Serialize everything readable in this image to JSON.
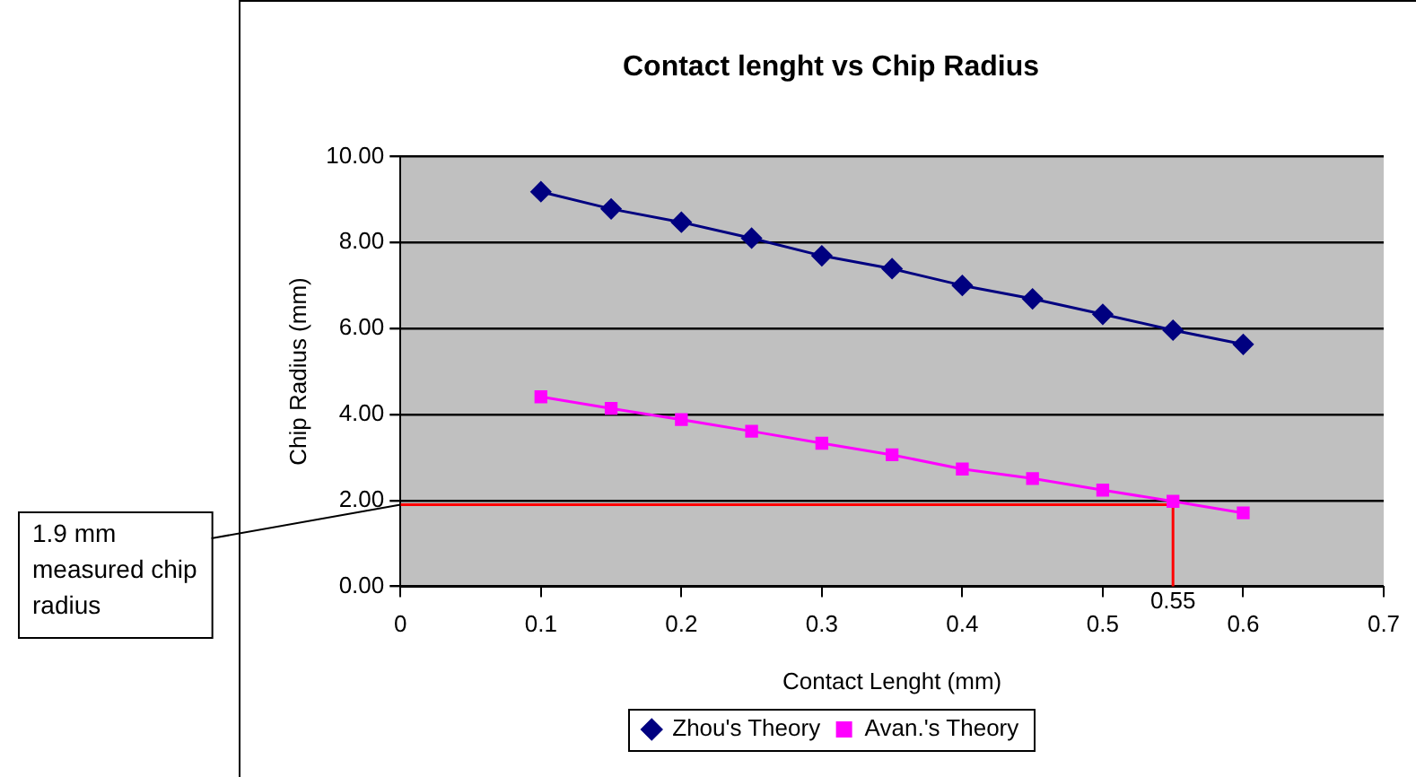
{
  "chart_data": {
    "type": "line",
    "title": "Contact lenght vs Chip Radius",
    "xlabel": "Contact Lenght (mm)",
    "ylabel": "Chip Radius (mm)",
    "series": [
      {
        "name": "Zhou's Theory",
        "color": "#000080",
        "marker": "diamond",
        "x": [
          0.1,
          0.15,
          0.2,
          0.25,
          0.3,
          0.35,
          0.4,
          0.45,
          0.5,
          0.55,
          0.6
        ],
        "values": [
          9.18,
          8.78,
          8.47,
          8.1,
          7.69,
          7.39,
          7.0,
          6.69,
          6.33,
          5.96,
          5.63
        ]
      },
      {
        "name": "Avan.'s Theory",
        "color": "#ff00ff",
        "marker": "square",
        "x": [
          0.1,
          0.15,
          0.2,
          0.25,
          0.3,
          0.35,
          0.4,
          0.45,
          0.5,
          0.55,
          0.6
        ],
        "values": [
          4.41,
          4.14,
          3.88,
          3.61,
          3.33,
          3.06,
          2.73,
          2.51,
          2.24,
          1.98,
          1.71
        ]
      },
      {
        "type": "line",
        "color": "#ff0000",
        "marker": "none",
        "x": [
          0,
          0.55,
          0.55
        ],
        "values": [
          1.9,
          1.9,
          0
        ]
      }
    ],
    "xlim": [
      0,
      0.7
    ],
    "xticks": [
      0,
      0.1,
      0.2,
      0.3,
      0.4,
      0.5,
      0.6,
      0.7
    ],
    "ylim": [
      0,
      10
    ],
    "yticks": [
      {
        "value": 0,
        "label": "0.00"
      },
      {
        "value": 2,
        "label": "2.00"
      },
      {
        "value": 4,
        "label": "4.00"
      },
      {
        "value": 6,
        "label": "6.00"
      },
      {
        "value": 8,
        "label": "8.00"
      },
      {
        "value": 10,
        "label": "10.00"
      }
    ],
    "grid": "y",
    "legend": "bottom",
    "annotations": [
      {
        "text": "0.55",
        "x": 0.55,
        "y": 0
      },
      {
        "text": "1.9 mm measured chip radius",
        "x": 0,
        "y": 1.9
      }
    ]
  }
}
